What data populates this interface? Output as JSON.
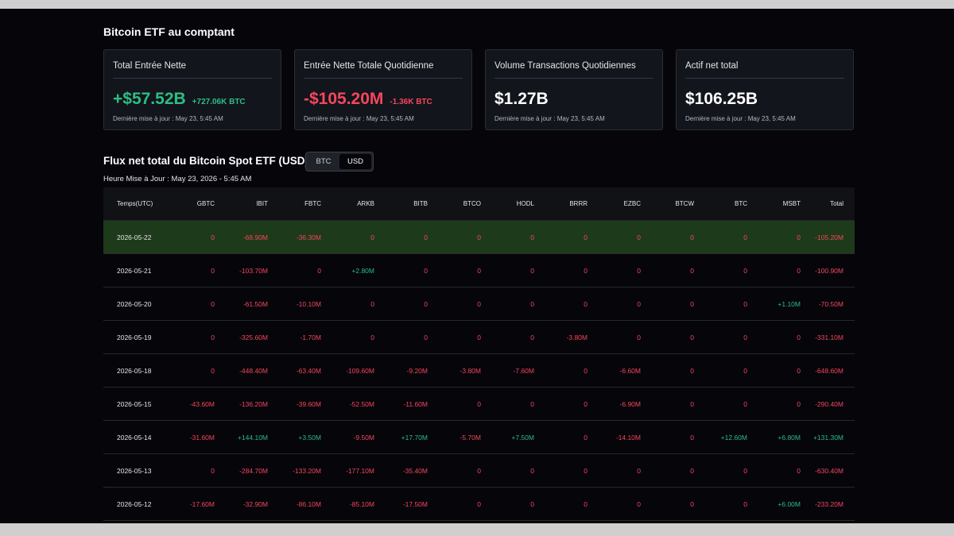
{
  "section_title": "Bitcoin ETF au comptant",
  "cards": [
    {
      "title": "Total Entrée Nette",
      "value": "+$57.52B",
      "value_sign": "pos",
      "sub": "+727.06K BTC",
      "sub_sign": "pos",
      "updated": "Dernière mise à jour : May 23, 5:45 AM"
    },
    {
      "title": "Entrée Nette Totale Quotidienne",
      "value": "-$105.20M",
      "value_sign": "neg",
      "sub": "-1.36K BTC",
      "sub_sign": "neg",
      "updated": "Dernière mise à jour : May 23, 5:45 AM"
    },
    {
      "title": "Volume Transactions Quotidiennes",
      "value": "$1.27B",
      "value_sign": "",
      "sub": "",
      "sub_sign": "",
      "updated": "Dernière mise à jour : May 23, 5:45 AM"
    },
    {
      "title": "Actif net total",
      "value": "$106.25B",
      "value_sign": "",
      "sub": "",
      "sub_sign": "",
      "updated": "Dernière mise à jour : May 23, 5:45 AM"
    }
  ],
  "flux": {
    "title": "Flux net total du Bitcoin Spot ETF (USD)",
    "toggle": [
      "BTC",
      "USD"
    ],
    "toggle_active": 1,
    "updated": "Heure Mise à Jour : May 23, 2026 - 5:45 AM"
  },
  "table": {
    "columns": [
      "Temps(UTC)",
      "GBTC",
      "IBIT",
      "FBTC",
      "ARKB",
      "BITB",
      "BTCO",
      "HODL",
      "BRRR",
      "EZBC",
      "BTCW",
      "BTC",
      "MSBT",
      "Total"
    ],
    "highlight_row": 0,
    "rows": [
      [
        "2026-05-22",
        "0",
        "-68.90M",
        "-36.30M",
        "0",
        "0",
        "0",
        "0",
        "0",
        "0",
        "0",
        "0",
        "0",
        "-105.20M"
      ],
      [
        "2026-05-21",
        "0",
        "-103.70M",
        "0",
        "+2.80M",
        "0",
        "0",
        "0",
        "0",
        "0",
        "0",
        "0",
        "0",
        "-100.90M"
      ],
      [
        "2026-05-20",
        "0",
        "-61.50M",
        "-10.10M",
        "0",
        "0",
        "0",
        "0",
        "0",
        "0",
        "0",
        "0",
        "+1.10M",
        "-70.50M"
      ],
      [
        "2026-05-19",
        "0",
        "-325.60M",
        "-1.70M",
        "0",
        "0",
        "0",
        "0",
        "-3.80M",
        "0",
        "0",
        "0",
        "0",
        "-331.10M"
      ],
      [
        "2026-05-18",
        "0",
        "-448.40M",
        "-63.40M",
        "-109.60M",
        "-9.20M",
        "-3.80M",
        "-7.60M",
        "0",
        "-6.60M",
        "0",
        "0",
        "0",
        "-648.60M"
      ],
      [
        "2026-05-15",
        "-43.60M",
        "-136.20M",
        "-39.60M",
        "-52.50M",
        "-11.60M",
        "0",
        "0",
        "0",
        "-6.90M",
        "0",
        "0",
        "0",
        "-290.40M"
      ],
      [
        "2026-05-14",
        "-31.60M",
        "+144.10M",
        "+3.50M",
        "-9.50M",
        "+17.70M",
        "-5.70M",
        "+7.50M",
        "0",
        "-14.10M",
        "0",
        "+12.60M",
        "+6.80M",
        "+131.30M"
      ],
      [
        "2026-05-13",
        "0",
        "-284.70M",
        "-133.20M",
        "-177.10M",
        "-35.40M",
        "0",
        "0",
        "0",
        "0",
        "0",
        "0",
        "0",
        "-630.40M"
      ],
      [
        "2026-05-12",
        "-17.60M",
        "-32.90M",
        "-86.10M",
        "-85.10M",
        "-17.50M",
        "0",
        "0",
        "0",
        "0",
        "0",
        "0",
        "+6.00M",
        "-233.20M"
      ]
    ]
  }
}
